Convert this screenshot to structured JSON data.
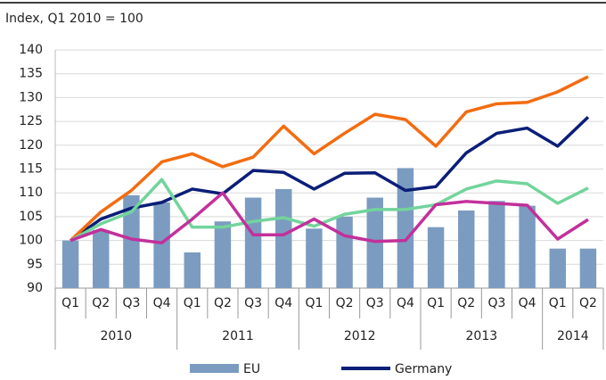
{
  "chart_data": {
    "type": "bar-line",
    "subtitle": "Index, Q1 2010 = 100",
    "categories": [
      "Q1",
      "Q2",
      "Q3",
      "Q4",
      "Q1",
      "Q2",
      "Q3",
      "Q4",
      "Q1",
      "Q2",
      "Q3",
      "Q4",
      "Q1",
      "Q2",
      "Q3",
      "Q4",
      "Q1",
      "Q2"
    ],
    "category_groups": [
      "2010",
      "2011",
      "2012",
      "2013",
      "2014"
    ],
    "ylim": [
      90,
      140
    ],
    "yticks": [
      90,
      95,
      100,
      105,
      110,
      115,
      120,
      125,
      130,
      135,
      140
    ],
    "grid": true,
    "series": [
      {
        "name": "EU",
        "kind": "bar",
        "color": "#7b9cc0",
        "values": [
          100,
          102.2,
          109.5,
          108,
          97.5,
          104,
          109,
          110.8,
          102.5,
          105,
          109,
          115.2,
          102.8,
          106.3,
          108.3,
          107.3,
          98.3,
          98.3
        ]
      },
      {
        "name": "Germany",
        "kind": "line",
        "color": "#0b1e78",
        "values": [
          100,
          104.5,
          106.8,
          108,
          110.8,
          109.8,
          114.7,
          114.3,
          110.8,
          114.1,
          114.2,
          110.5,
          111.3,
          118.4,
          122.5,
          123.6,
          119.8,
          125.9
        ]
      },
      {
        "kind": "line",
        "color": "#f36c10",
        "values": [
          100,
          106,
          110.5,
          116.5,
          118.2,
          115.5,
          117.5,
          124,
          118.2,
          122.5,
          126.5,
          125.4,
          119.8,
          127,
          128.7,
          129,
          131.2,
          134.4
        ]
      },
      {
        "kind": "line",
        "color": "#72d49c",
        "values": [
          100,
          103.5,
          106,
          112.8,
          102.8,
          102.8,
          104,
          104.8,
          103,
          105.5,
          106.5,
          106.5,
          107.5,
          110.8,
          112.5,
          111.9,
          107.8,
          111
        ]
      },
      {
        "kind": "line",
        "color": "#c2309b",
        "values": [
          100,
          102.3,
          100.3,
          99.5,
          104.5,
          110,
          101.2,
          101.2,
          104.5,
          101,
          99.8,
          100,
          107.5,
          108.2,
          107.8,
          107.4,
          100.3,
          104.4
        ]
      }
    ]
  }
}
